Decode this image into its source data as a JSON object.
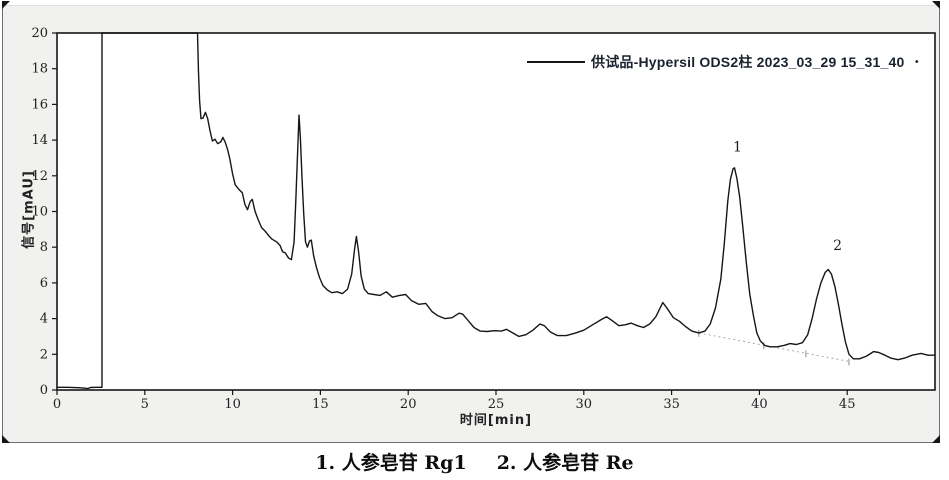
{
  "figure": {
    "legend": {
      "label": "供试品-Hypersil ODS2柱 2023_03_29 15_31_40",
      "stray_dot": "."
    },
    "caption": {
      "item1": "1.  人参皂苷 Rg1",
      "item2": "2.  人参皂苷 Re"
    }
  },
  "chart_data": {
    "type": "line",
    "title": "",
    "xlabel": "时间[min]",
    "ylabel": "信号[mAU]",
    "xlim": [
      0,
      50
    ],
    "ylim": [
      0,
      20
    ],
    "x_ticks": [
      0,
      5,
      10,
      15,
      20,
      25,
      30,
      35,
      40,
      45
    ],
    "y_ticks": [
      0,
      2,
      4,
      6,
      8,
      10,
      12,
      14,
      16,
      18,
      20
    ],
    "grid": false,
    "legend_position": "top-right",
    "line_color": "#161616",
    "annotations": [
      {
        "label": "1",
        "x": 38.75,
        "y": 13.35,
        "apex_x": 38.55,
        "apex_y": 12.45
      },
      {
        "label": "2",
        "x": 44.45,
        "y": 7.85,
        "apex_x": 43.92,
        "apex_y": 6.75
      }
    ],
    "integration_baseline": {
      "style": "dotted",
      "color": "#a9a9a9",
      "from": [
        36.55,
        3.2
      ],
      "to": [
        45.1,
        1.6
      ],
      "tick_x": [
        36.55,
        40.25,
        42.65,
        45.1
      ]
    },
    "series": [
      {
        "name": "供试品-Hypersil ODS2柱 2023_03_29 15_31_40",
        "color": "#161616",
        "points": [
          [
            0,
            0.15
          ],
          [
            0.6,
            0.15
          ],
          [
            1.2,
            0.13
          ],
          [
            1.6,
            0.1
          ],
          [
            1.75,
            0.08
          ],
          [
            1.9,
            0.14
          ],
          [
            2.2,
            0.15
          ],
          [
            2.56,
            0.15
          ],
          [
            2.56,
            20
          ],
          [
            8.0,
            20
          ],
          [
            8.06,
            17.8
          ],
          [
            8.12,
            16.2
          ],
          [
            8.2,
            15.2
          ],
          [
            8.32,
            15.25
          ],
          [
            8.45,
            15.55
          ],
          [
            8.58,
            15.2
          ],
          [
            8.72,
            14.5
          ],
          [
            8.85,
            13.95
          ],
          [
            9.0,
            14.05
          ],
          [
            9.15,
            13.8
          ],
          [
            9.32,
            13.9
          ],
          [
            9.45,
            14.15
          ],
          [
            9.58,
            13.88
          ],
          [
            9.72,
            13.45
          ],
          [
            9.85,
            12.9
          ],
          [
            10.0,
            12.1
          ],
          [
            10.15,
            11.5
          ],
          [
            10.35,
            11.25
          ],
          [
            10.55,
            11.05
          ],
          [
            10.7,
            10.4
          ],
          [
            10.85,
            10.1
          ],
          [
            11.0,
            10.55
          ],
          [
            11.12,
            10.68
          ],
          [
            11.28,
            10.0
          ],
          [
            11.45,
            9.55
          ],
          [
            11.65,
            9.1
          ],
          [
            11.85,
            8.9
          ],
          [
            12.05,
            8.65
          ],
          [
            12.25,
            8.45
          ],
          [
            12.5,
            8.3
          ],
          [
            12.7,
            8.1
          ],
          [
            12.85,
            7.75
          ],
          [
            13.0,
            7.68
          ],
          [
            13.18,
            7.4
          ],
          [
            13.35,
            7.3
          ],
          [
            13.5,
            8.3
          ],
          [
            13.6,
            10.6
          ],
          [
            13.7,
            13.3
          ],
          [
            13.78,
            15.4
          ],
          [
            13.86,
            14.1
          ],
          [
            13.95,
            11.9
          ],
          [
            14.05,
            9.9
          ],
          [
            14.15,
            8.3
          ],
          [
            14.26,
            8.0
          ],
          [
            14.38,
            8.35
          ],
          [
            14.48,
            8.4
          ],
          [
            14.62,
            7.5
          ],
          [
            14.78,
            6.85
          ],
          [
            14.95,
            6.3
          ],
          [
            15.15,
            5.85
          ],
          [
            15.4,
            5.6
          ],
          [
            15.65,
            5.45
          ],
          [
            15.95,
            5.5
          ],
          [
            16.25,
            5.4
          ],
          [
            16.55,
            5.65
          ],
          [
            16.78,
            6.5
          ],
          [
            16.95,
            7.9
          ],
          [
            17.05,
            8.6
          ],
          [
            17.18,
            7.7
          ],
          [
            17.32,
            6.4
          ],
          [
            17.5,
            5.65
          ],
          [
            17.72,
            5.4
          ],
          [
            18.05,
            5.35
          ],
          [
            18.4,
            5.3
          ],
          [
            18.75,
            5.5
          ],
          [
            19.1,
            5.2
          ],
          [
            19.5,
            5.3
          ],
          [
            19.85,
            5.35
          ],
          [
            20.2,
            5.0
          ],
          [
            20.6,
            4.8
          ],
          [
            21.0,
            4.85
          ],
          [
            21.35,
            4.4
          ],
          [
            21.7,
            4.15
          ],
          [
            22.1,
            4.0
          ],
          [
            22.5,
            4.05
          ],
          [
            22.9,
            4.3
          ],
          [
            23.1,
            4.25
          ],
          [
            23.45,
            3.85
          ],
          [
            23.75,
            3.5
          ],
          [
            24.1,
            3.3
          ],
          [
            24.5,
            3.28
          ],
          [
            24.9,
            3.32
          ],
          [
            25.3,
            3.3
          ],
          [
            25.6,
            3.4
          ],
          [
            25.95,
            3.2
          ],
          [
            26.3,
            3.0
          ],
          [
            26.7,
            3.1
          ],
          [
            27.1,
            3.35
          ],
          [
            27.5,
            3.7
          ],
          [
            27.75,
            3.6
          ],
          [
            28.1,
            3.25
          ],
          [
            28.5,
            3.05
          ],
          [
            29.0,
            3.05
          ],
          [
            29.5,
            3.18
          ],
          [
            30.0,
            3.35
          ],
          [
            30.5,
            3.65
          ],
          [
            31.0,
            3.95
          ],
          [
            31.3,
            4.1
          ],
          [
            31.6,
            3.9
          ],
          [
            32.0,
            3.6
          ],
          [
            32.35,
            3.65
          ],
          [
            32.7,
            3.75
          ],
          [
            33.05,
            3.6
          ],
          [
            33.4,
            3.5
          ],
          [
            33.75,
            3.7
          ],
          [
            34.1,
            4.1
          ],
          [
            34.5,
            4.9
          ],
          [
            34.8,
            4.5
          ],
          [
            35.1,
            4.05
          ],
          [
            35.45,
            3.85
          ],
          [
            35.8,
            3.55
          ],
          [
            36.15,
            3.3
          ],
          [
            36.55,
            3.2
          ],
          [
            36.9,
            3.3
          ],
          [
            37.2,
            3.7
          ],
          [
            37.5,
            4.6
          ],
          [
            37.8,
            6.2
          ],
          [
            38.0,
            8.2
          ],
          [
            38.2,
            10.6
          ],
          [
            38.35,
            11.8
          ],
          [
            38.5,
            12.4
          ],
          [
            38.58,
            12.45
          ],
          [
            38.72,
            11.85
          ],
          [
            38.88,
            10.8
          ],
          [
            39.05,
            9.2
          ],
          [
            39.25,
            7.2
          ],
          [
            39.45,
            5.4
          ],
          [
            39.65,
            4.2
          ],
          [
            39.85,
            3.2
          ],
          [
            40.05,
            2.75
          ],
          [
            40.3,
            2.5
          ],
          [
            40.6,
            2.42
          ],
          [
            41.0,
            2.42
          ],
          [
            41.4,
            2.5
          ],
          [
            41.75,
            2.6
          ],
          [
            42.1,
            2.55
          ],
          [
            42.45,
            2.65
          ],
          [
            42.75,
            3.1
          ],
          [
            43.0,
            4.0
          ],
          [
            43.25,
            5.1
          ],
          [
            43.5,
            6.0
          ],
          [
            43.75,
            6.6
          ],
          [
            43.92,
            6.75
          ],
          [
            44.1,
            6.5
          ],
          [
            44.3,
            5.8
          ],
          [
            44.5,
            4.8
          ],
          [
            44.7,
            3.7
          ],
          [
            44.9,
            2.7
          ],
          [
            45.1,
            2.0
          ],
          [
            45.35,
            1.75
          ],
          [
            45.7,
            1.75
          ],
          [
            46.1,
            1.9
          ],
          [
            46.5,
            2.15
          ],
          [
            46.8,
            2.1
          ],
          [
            47.15,
            1.95
          ],
          [
            47.5,
            1.78
          ],
          [
            47.9,
            1.7
          ],
          [
            48.3,
            1.8
          ],
          [
            48.7,
            1.95
          ],
          [
            49.2,
            2.05
          ],
          [
            49.6,
            1.95
          ],
          [
            49.95,
            1.95
          ]
        ]
      }
    ]
  }
}
